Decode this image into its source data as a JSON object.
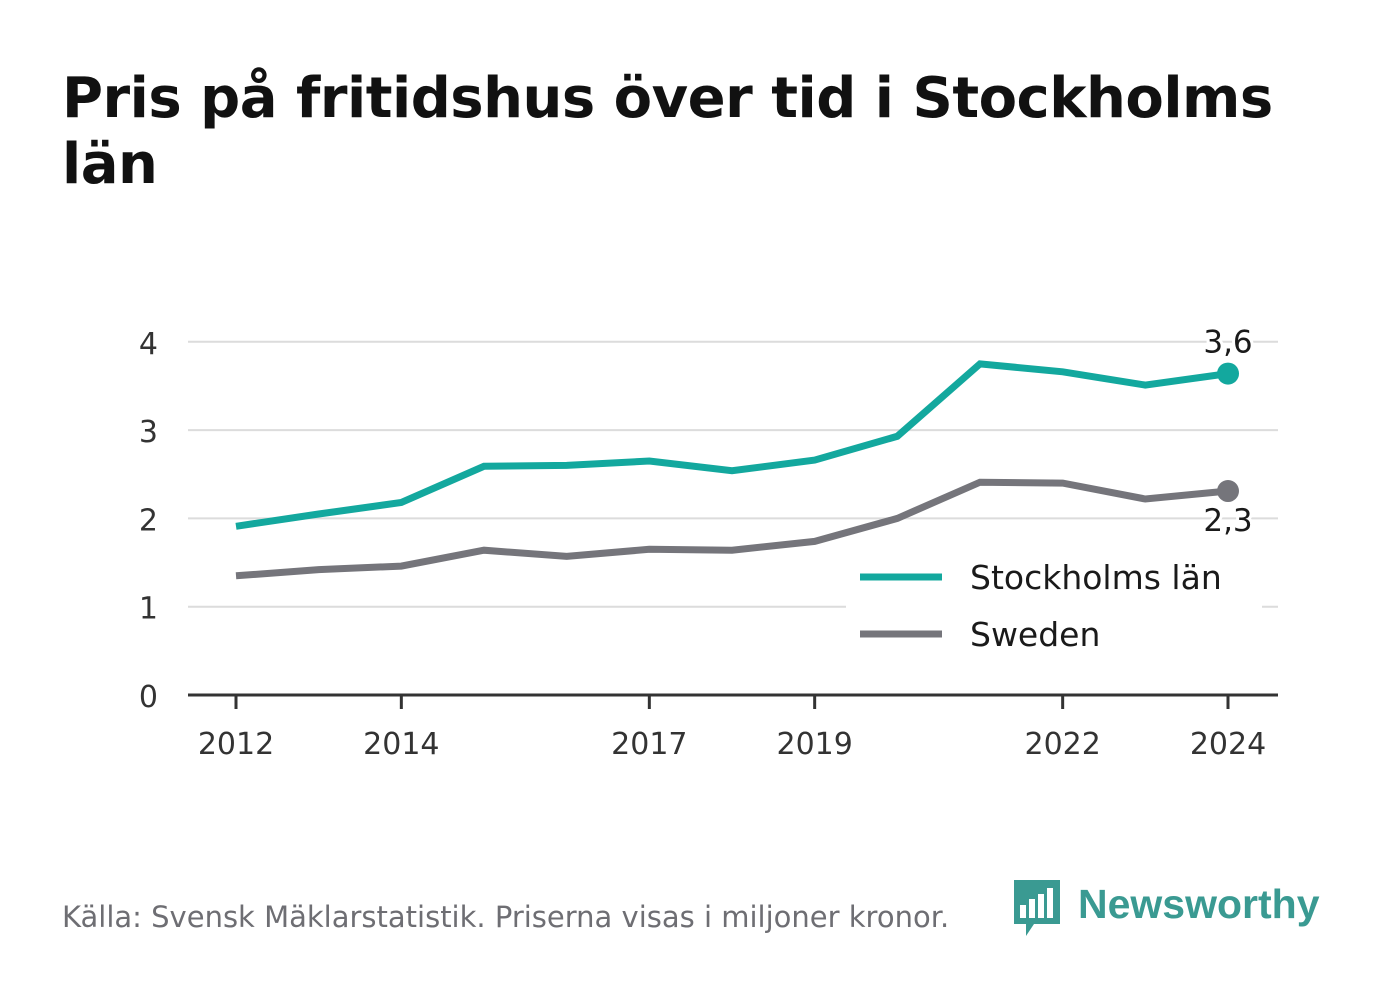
{
  "title": "Pris på fritidshus över tid i Stockholms län",
  "source": "Källa: Svensk Mäklarstatistik. Priserna visas i miljoner kronor.",
  "brand": {
    "name": "Newsworthy",
    "icon": "newsworthy-logo-icon",
    "color": "#3a9a92"
  },
  "chart_data": {
    "type": "line",
    "x": [
      2012,
      2013,
      2014,
      2015,
      2016,
      2017,
      2018,
      2019,
      2020,
      2021,
      2022,
      2023,
      2024
    ],
    "x_tick_labels": [
      "2012",
      "2014",
      "2017",
      "2019",
      "2022",
      "2024"
    ],
    "y_tick_labels": [
      "0",
      "1",
      "2",
      "3",
      "4"
    ],
    "ylim": [
      0,
      4.2
    ],
    "grid": true,
    "legend_position": "bottom-right",
    "series": [
      {
        "name": "Stockholms län",
        "color": "#13a89e",
        "values": [
          1.91,
          2.05,
          2.18,
          2.59,
          2.6,
          2.65,
          2.54,
          2.66,
          2.93,
          3.75,
          3.66,
          3.51,
          3.64
        ],
        "end_label": "3,6"
      },
      {
        "name": "Sweden",
        "color": "#75757b",
        "values": [
          1.35,
          1.42,
          1.46,
          1.64,
          1.57,
          1.65,
          1.64,
          1.74,
          2.0,
          2.41,
          2.4,
          2.22,
          2.31
        ],
        "end_label": "2,3"
      }
    ]
  }
}
